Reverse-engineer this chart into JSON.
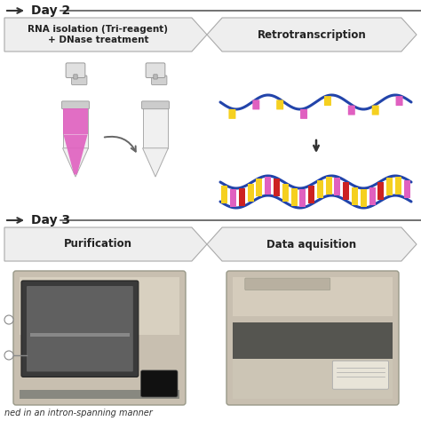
{
  "bg_color": "#ffffff",
  "day2_label": "Day 2",
  "day3_label": "Day 3",
  "box1_text": "RNA isolation (Tri-reagent)\n+ DNase treatment",
  "box2_text": "Retrotranscription",
  "box3_text": "Purification",
  "box4_text": "Data aquisition",
  "footer_text": "ned in an intron-spanning manner",
  "day_line_color": "#555555",
  "text_color": "#222222",
  "box_fill": "#f0f0f0",
  "box_edge": "#b0b0b0",
  "figsize": [
    4.74,
    4.74
  ],
  "dpi": 100
}
